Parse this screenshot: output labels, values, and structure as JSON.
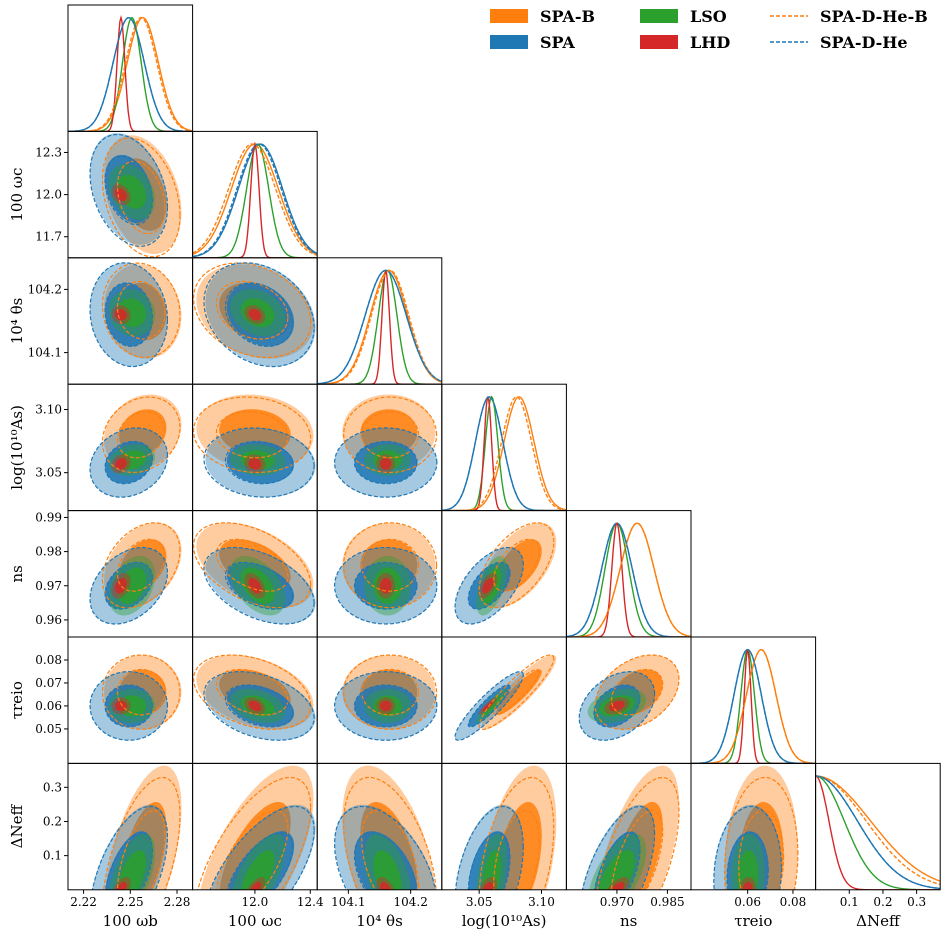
{
  "chart_data": {
    "type": "corner",
    "params": [
      {
        "key": "omega_b",
        "label": "100 ω_b",
        "range": [
          2.21,
          2.29
        ],
        "center": 2.249,
        "ticks": [
          "2.22",
          "2.25",
          "2.28"
        ],
        "tickvals": [
          2.22,
          2.25,
          2.28
        ]
      },
      {
        "key": "omega_c",
        "label": "100 ω_c",
        "range": [
          11.55,
          12.45
        ],
        "center": 12.0,
        "ticks": [
          "12.0",
          "12.4"
        ],
        "tickvals": [
          12.0,
          12.4
        ],
        "yticks": [
          "11.7",
          "12.0",
          "12.3"
        ],
        "ytickvals": [
          11.7,
          12.0,
          12.3
        ]
      },
      {
        "key": "theta_s",
        "label": "10⁴ θ_s",
        "range": [
          104.05,
          104.25
        ],
        "center": 104.16,
        "ticks": [
          "104.1",
          "104.2"
        ],
        "tickvals": [
          104.1,
          104.2
        ]
      },
      {
        "key": "logAs",
        "label": "log(10¹⁰ A_s)",
        "range": [
          3.02,
          3.12
        ],
        "center": 3.056,
        "ticks": [
          "3.05",
          "3.10"
        ],
        "tickvals": [
          3.05,
          3.1
        ]
      },
      {
        "key": "n_s",
        "label": "n_s",
        "range": [
          0.955,
          0.992
        ],
        "center": 0.97,
        "ticks": [
          "0.970",
          "0.985"
        ],
        "tickvals": [
          0.97,
          0.985
        ],
        "yticks": [
          "0.96",
          "0.97",
          "0.98",
          "0.99"
        ],
        "ytickvals": [
          0.96,
          0.97,
          0.98,
          0.99
        ]
      },
      {
        "key": "tau_reio",
        "label": "τ_reio",
        "range": [
          0.035,
          0.09
        ],
        "center": 0.06,
        "ticks": [
          "0.06",
          "0.08"
        ],
        "tickvals": [
          0.06,
          0.08
        ],
        "yticks": [
          "0.05",
          "0.06",
          "0.07",
          "0.08"
        ],
        "ytickvals": [
          0.05,
          0.06,
          0.07,
          0.08
        ]
      },
      {
        "key": "N_eff",
        "label": "ΔN_eff",
        "range": [
          0.0,
          0.37
        ],
        "center": 0.0,
        "ticks": [
          "0.1",
          "0.2",
          "0.3"
        ],
        "tickvals": [
          0.1,
          0.2,
          0.3
        ]
      }
    ],
    "axis_labels_display": {
      "omega_b": "100 ωb",
      "omega_c": "100 ωc",
      "theta_s": "10⁴ θs",
      "logAs": "log(10¹⁰As)",
      "n_s": "ns",
      "tau_reio": "τreio",
      "N_eff": "ΔNeff"
    },
    "series": [
      {
        "name": "SPA-B",
        "color": "#ff7f0e",
        "style": "filled",
        "means": [
          2.258,
          12.0,
          104.165,
          3.082,
          0.976,
          0.066,
          0.09
        ],
        "sigmas": [
          0.01,
          0.17,
          0.03,
          0.012,
          0.005,
          0.0065,
          0.11
        ],
        "corr": "broad"
      },
      {
        "name": "SPA",
        "color": "#1f77b4",
        "style": "filled",
        "means": [
          2.249,
          12.04,
          104.16,
          3.058,
          0.97,
          0.06,
          0.05
        ],
        "sigmas": [
          0.01,
          0.16,
          0.033,
          0.011,
          0.0045,
          0.006,
          0.08
        ],
        "corr": "broad"
      },
      {
        "name": "LSO",
        "color": "#2ca02c",
        "style": "filled",
        "means": [
          2.251,
          12.02,
          104.163,
          3.06,
          0.97,
          0.06,
          0.04
        ],
        "sigmas": [
          0.006,
          0.08,
          0.015,
          0.005,
          0.0035,
          0.003,
          0.05
        ],
        "corr": "medium"
      },
      {
        "name": "LHD",
        "color": "#d62728",
        "style": "filled",
        "means": [
          2.244,
          12.0,
          104.16,
          3.057,
          0.97,
          0.06,
          0.0
        ],
        "sigmas": [
          0.0025,
          0.03,
          0.006,
          0.003,
          0.0015,
          0.0015,
          0.015
        ],
        "corr": "narrow"
      },
      {
        "name": "SPA-D-He-B",
        "color": "#ff7f0e",
        "style": "dashed",
        "means": [
          2.257,
          11.98,
          104.167,
          3.08,
          0.976,
          0.066,
          0.08
        ],
        "sigmas": [
          0.01,
          0.17,
          0.03,
          0.012,
          0.005,
          0.0065,
          0.1
        ],
        "corr": "broad"
      },
      {
        "name": "SPA-D-He",
        "color": "#1f77b4",
        "style": "dashed",
        "means": [
          2.249,
          12.03,
          104.16,
          3.058,
          0.97,
          0.06,
          0.045
        ],
        "sigmas": [
          0.01,
          0.16,
          0.033,
          0.011,
          0.0045,
          0.006,
          0.08
        ],
        "corr": "broad"
      }
    ],
    "legend": {
      "position": "top-right",
      "entries": [
        "SPA-B",
        "LSO",
        "SPA-D-He-B",
        "SPA",
        "LHD",
        "SPA-D-He"
      ]
    }
  }
}
